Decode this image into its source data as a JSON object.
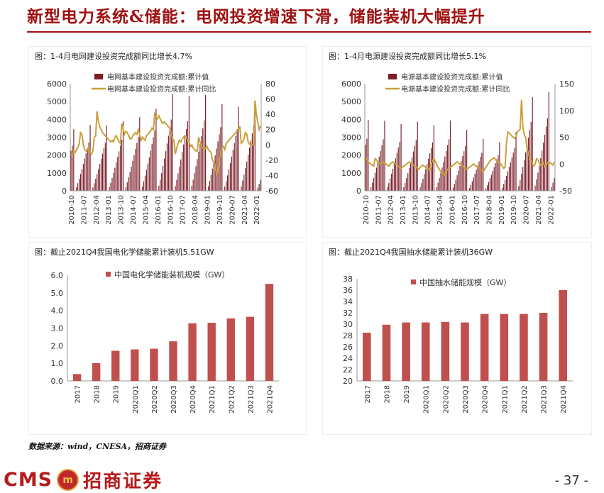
{
  "page": {
    "title": "新型电力系统&储能：电网投资增速下滑，储能装机大幅提升",
    "source": "数据来源：wind，CNESA，招商证券",
    "logo": {
      "latin": "CMS",
      "mark": "m",
      "cn": "招商证券"
    },
    "page_number": "- 37 -"
  },
  "colors": {
    "bar": "#7B1E28",
    "line": "#C9A13A",
    "bar2": "#C0504D",
    "accent": "#A01010"
  },
  "chart_data": [
    {
      "id": "grid",
      "type": "bar+line",
      "title": "图：1-4月电网建设投资完成额同比增长4.7%",
      "legend": [
        "电网基本建设投资完成额:累计值",
        "电网基本建设投资完成额:累计同比"
      ],
      "y_left": {
        "min": 0,
        "max": 6000,
        "ticks": [
          "0",
          "1000",
          "2000",
          "3000",
          "4000",
          "5000",
          "6000"
        ]
      },
      "y_right": {
        "min": -60,
        "max": 80,
        "ticks": [
          "-60",
          "-40",
          "-20",
          "0",
          "20",
          "40",
          "60",
          "80"
        ]
      },
      "x_ticks": [
        "2010-10",
        "2011-07",
        "2012-04",
        "2013-01",
        "2013-10",
        "2014-07",
        "2015-04",
        "2016-01",
        "2016-10",
        "2017-07",
        "2018-04",
        "2019-01",
        "2019-10",
        "2020-07",
        "2021-04",
        "2022-01"
      ],
      "start": "2010-10",
      "end": "2022-04",
      "annual_dec_totals": {
        "2010": 3448,
        "2011": 3687,
        "2012": 3661,
        "2013": 3894,
        "2014": 4118,
        "2015": 4603,
        "2016": 5431,
        "2017": 5315,
        "2018": 5373,
        "2019": 4856,
        "2020": 4699,
        "2021": 4951
      },
      "ytd_2022_apr": 1128,
      "yoy_series": [
        -12,
        -14,
        -8,
        -10,
        -6,
        -4,
        2,
        16,
        14,
        0,
        -6,
        -8,
        -6,
        -4,
        -10,
        -12,
        -8,
        10,
        12,
        44,
        30,
        24,
        20,
        16,
        14,
        12,
        10,
        8,
        6,
        4,
        6,
        4,
        10,
        12,
        8,
        4,
        2,
        28,
        20,
        14,
        18,
        16,
        12,
        8,
        8,
        12,
        14,
        16,
        14,
        20,
        14,
        6,
        10,
        8,
        6,
        12,
        14,
        16,
        18,
        22,
        20,
        40,
        36,
        34,
        38,
        34,
        30,
        28,
        30,
        28,
        26,
        24,
        22,
        14,
        8,
        6,
        -12,
        -4,
        2,
        6,
        4,
        8,
        10,
        12,
        10,
        6,
        4,
        -2,
        0,
        -4,
        -6,
        -8,
        -8,
        10,
        4,
        -2,
        -4,
        -6,
        -4,
        -2,
        -6,
        -8,
        -10,
        -20,
        -22,
        -28,
        -40,
        -34,
        -22,
        -10,
        -4,
        -2,
        -6,
        2,
        4,
        6,
        8,
        10,
        12,
        14,
        16,
        18,
        20,
        24,
        2,
        4,
        8,
        16,
        14,
        4,
        1,
        0,
        0,
        0,
        58,
        40,
        30,
        20,
        25,
        4.7
      ]
    },
    {
      "id": "source",
      "type": "bar+line",
      "title": "图：1-4月电源建设投资完成额同比增长5.1%",
      "legend": [
        "电源基本建设投资完成额:累计值",
        "电源基本建设投资完成额:累计同比"
      ],
      "y_left": {
        "min": 0,
        "max": 6000,
        "ticks": [
          "0",
          "1000",
          "2000",
          "3000",
          "4000",
          "5000",
          "6000"
        ]
      },
      "y_right": {
        "min": -50,
        "max": 150,
        "ticks": [
          "-50",
          "0",
          "50",
          "100",
          "150"
        ]
      },
      "x_ticks": [
        "2010-10",
        "2011-07",
        "2012-04",
        "2013-01",
        "2013-10",
        "2014-07",
        "2015-04",
        "2016-01",
        "2016-10",
        "2017-07",
        "2018-04",
        "2019-01",
        "2019-10",
        "2020-07",
        "2021-04",
        "2022-01"
      ],
      "start": "2010-10",
      "end": "2022-04",
      "annual_dec_totals": {
        "2010": 3969,
        "2011": 3927,
        "2012": 3732,
        "2013": 3872,
        "2014": 3686,
        "2015": 3936,
        "2016": 3408,
        "2017": 2900,
        "2018": 2721,
        "2019": 3283,
        "2020": 5244,
        "2021": 5530
      },
      "ytd_2022_apr": 1310,
      "yoy_series": [
        8,
        10,
        4,
        2,
        0,
        -2,
        -4,
        10,
        8,
        4,
        2,
        0,
        2,
        4,
        2,
        0,
        -2,
        -4,
        0,
        2,
        4,
        2,
        0,
        -2,
        -4,
        -6,
        -8,
        -6,
        -4,
        -2,
        0,
        2,
        4,
        2,
        0,
        -2,
        -4,
        -6,
        -8,
        -10,
        -6,
        -4,
        -2,
        -4,
        -6,
        -8,
        -10,
        -12,
        0,
        6,
        10,
        4,
        0,
        -6,
        -10,
        -14,
        -16,
        -18,
        -20,
        -14,
        -10,
        -8,
        -6,
        -4,
        -2,
        0,
        2,
        4,
        2,
        0,
        -2,
        -4,
        -6,
        -8,
        -10,
        -8,
        -6,
        -4,
        -2,
        0,
        -2,
        -4,
        -6,
        -8,
        -10,
        -12,
        -14,
        -10,
        -6,
        -2,
        2,
        6,
        8,
        10,
        12,
        8,
        6,
        4,
        2,
        0,
        -4,
        -8,
        -6,
        40,
        60,
        58,
        55,
        52,
        50,
        48,
        52,
        60,
        62,
        65,
        120,
        70,
        55,
        50,
        30,
        20,
        10,
        5,
        0,
        -4,
        0,
        10,
        8,
        2,
        -2,
        0,
        2,
        -4,
        0,
        2,
        4,
        2,
        0,
        -2,
        4,
        6,
        5.1
      ]
    },
    {
      "id": "electrochem",
      "type": "bar",
      "title": "图：截止2021Q4我国电化学储能累计装机5.51GW",
      "legend": "中国电化学储能装机规模（GW）",
      "categories": [
        "2017",
        "2018",
        "2019",
        "2020Q1",
        "2020Q2",
        "2020Q3",
        "2020Q4",
        "2021Q1",
        "2021Q2",
        "2021Q3",
        "2021Q4"
      ],
      "values": [
        0.39,
        1.01,
        1.71,
        1.79,
        1.83,
        2.25,
        3.27,
        3.3,
        3.55,
        3.64,
        5.51
      ],
      "ylim": [
        0,
        6
      ],
      "y_ticks": [
        "0.0",
        "1.0",
        "2.0",
        "3.0",
        "4.0",
        "5.0",
        "6.0"
      ]
    },
    {
      "id": "pumped",
      "type": "bar",
      "title": "图：截止2021Q4我国抽水储能累计装机36GW",
      "legend": "中国抽水储能规模（GW）",
      "categories": [
        "2017",
        "2018",
        "2019",
        "2020Q1",
        "2020Q2",
        "2020Q3",
        "2020Q4",
        "2021Q1",
        "2021Q2",
        "2021Q3",
        "2021Q4"
      ],
      "values": [
        28.5,
        29.9,
        30.3,
        30.3,
        30.4,
        30.3,
        31.8,
        31.8,
        31.8,
        32.0,
        36.0
      ],
      "ylim": [
        20,
        38
      ],
      "y_ticks": [
        "20",
        "22",
        "24",
        "26",
        "28",
        "30",
        "32",
        "34",
        "36",
        "38"
      ]
    }
  ]
}
